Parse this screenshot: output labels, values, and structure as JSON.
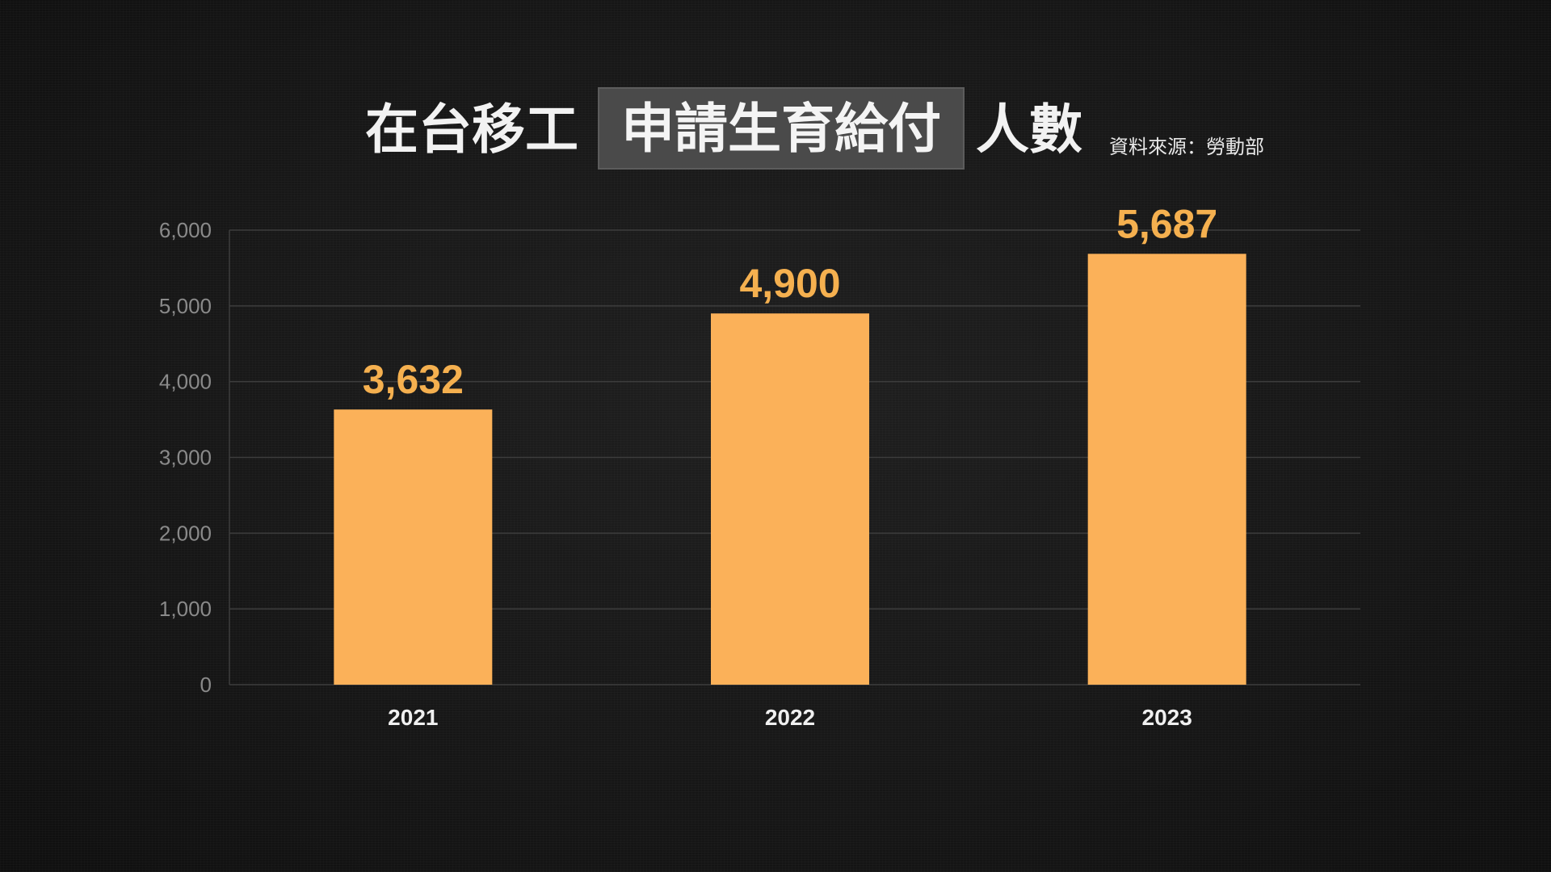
{
  "title": {
    "part1": "在台移工",
    "highlight": "申請生育給付",
    "part3": "人數"
  },
  "source": "資料來源：勞動部",
  "colors": {
    "bar": "#fbb159",
    "value_label": "#f5b04f",
    "grid": "#3d3d3d",
    "background": "#171717",
    "highlight_box": "#4a4a4a"
  },
  "chart_data": {
    "type": "bar",
    "categories": [
      "2021",
      "2022",
      "2023"
    ],
    "values": [
      3632,
      4900,
      5687
    ],
    "value_labels": [
      "3,632",
      "4,900",
      "5,687"
    ],
    "y_ticks": [
      0,
      1000,
      2000,
      3000,
      4000,
      5000,
      6000
    ],
    "y_tick_labels": [
      "0",
      "1,000",
      "2,000",
      "3,000",
      "4,000",
      "5,000",
      "6,000"
    ],
    "ylim": [
      0,
      6000
    ],
    "grid": true,
    "xlabel": "",
    "ylabel": ""
  }
}
